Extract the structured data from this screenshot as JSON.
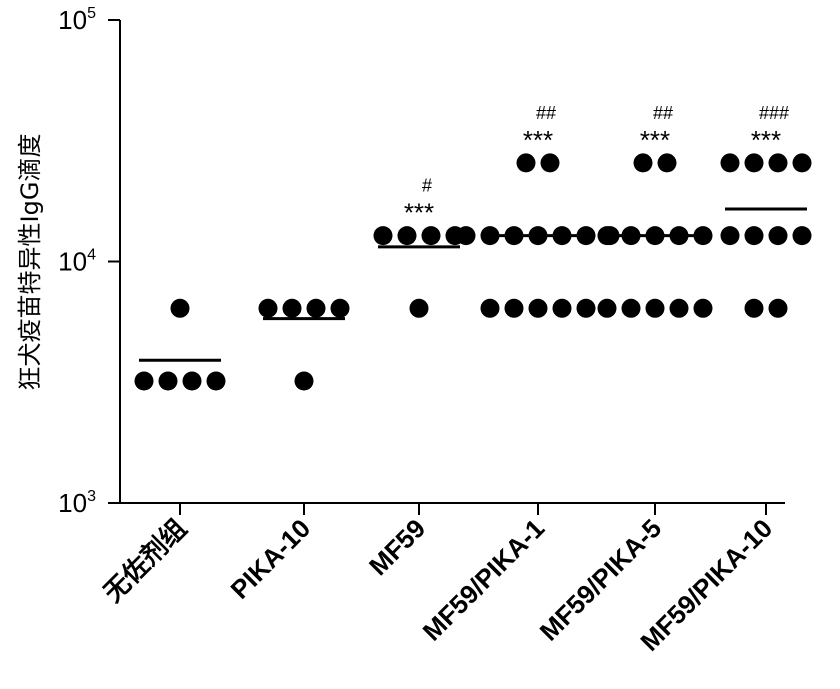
{
  "chart_data": {
    "type": "scatter",
    "ylabel": "狂犬疫苗特异性IgG滴度",
    "xlabel": "",
    "yscale": "log",
    "ylim": [
      1000,
      100000
    ],
    "yticks": [
      {
        "value": 1000,
        "base": "10",
        "exp": "3"
      },
      {
        "value": 10000,
        "base": "10",
        "exp": "4"
      },
      {
        "value": 100000,
        "base": "10",
        "exp": "5"
      }
    ],
    "categories": [
      "无佐剂组",
      "PIKA-10",
      "MF59",
      "MF59/PIKA-1",
      "MF59/PIKA-5",
      "MF59/PIKA-10"
    ],
    "groups": [
      {
        "name": "无佐剂组",
        "points": [
          6400,
          3200,
          3200,
          3200,
          3200
        ],
        "mean": 3900,
        "stars": "",
        "hash": ""
      },
      {
        "name": "PIKA-10",
        "points": [
          6400,
          6400,
          6400,
          6400,
          3200
        ],
        "mean": 5800,
        "stars": "",
        "hash": ""
      },
      {
        "name": "MF59",
        "points": [
          12800,
          12800,
          12800,
          12800,
          6400
        ],
        "mean": 11500,
        "stars": "***",
        "hash": "#"
      },
      {
        "name": "MF59/PIKA-1",
        "points": [
          25600,
          25600,
          12800,
          12800,
          12800,
          12800,
          12800,
          12800,
          12800,
          6400,
          6400,
          6400,
          6400,
          6400
        ],
        "mean": 12800,
        "stars": "***",
        "hash": "##"
      },
      {
        "name": "MF59/PIKA-5",
        "points": [
          25600,
          25600,
          12800,
          12800,
          12800,
          12800,
          12800,
          6400,
          6400,
          6400,
          6400,
          6400
        ],
        "mean": 12800,
        "stars": "***",
        "hash": "##"
      },
      {
        "name": "MF59/PIKA-10",
        "points": [
          25600,
          25600,
          25600,
          25600,
          12800,
          12800,
          12800,
          12800,
          6400,
          6400
        ],
        "mean": 16500,
        "stars": "***",
        "hash": "###"
      }
    ]
  }
}
